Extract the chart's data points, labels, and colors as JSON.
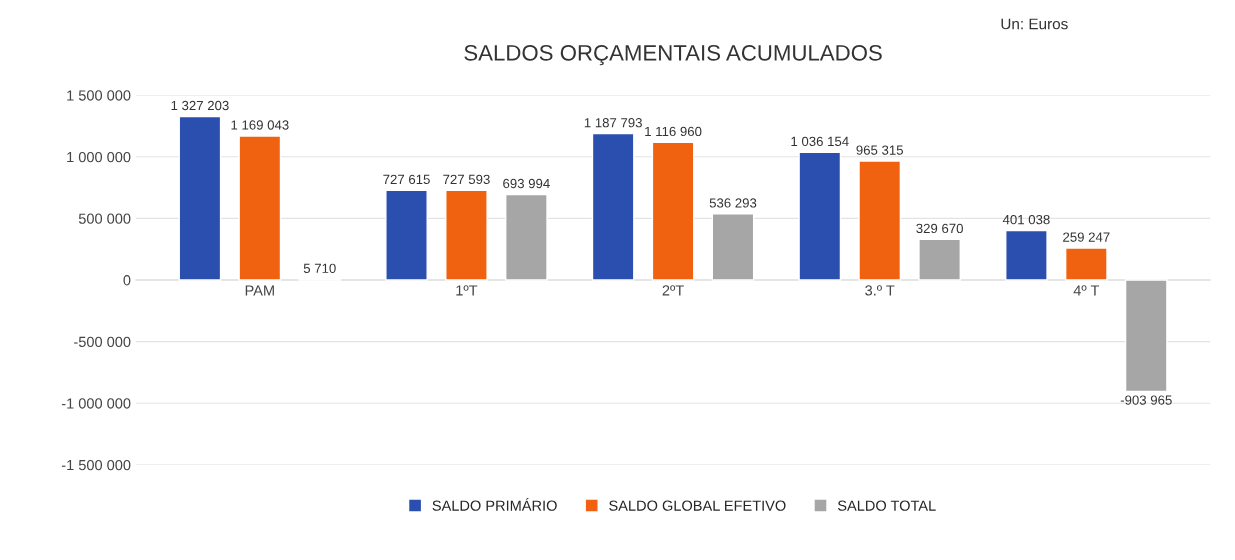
{
  "chart_data": {
    "type": "bar",
    "title": "SALDOS ORÇAMENTAIS ACUMULADOS",
    "annotations": [
      "Un: Euros"
    ],
    "categories": [
      "PAM",
      "1ºT",
      "2ºT",
      "3.º T",
      "4º T"
    ],
    "series": [
      {
        "name": "SALDO PRIMÁRIO",
        "color": "#2b4fae",
        "values": [
          1327203,
          727615,
          1187793,
          1036154,
          401038
        ],
        "value_labels": [
          "1 327 203",
          "727 615",
          "1 187 793",
          "1 036 154",
          "401 038"
        ]
      },
      {
        "name": "SALDO GLOBAL EFETIVO",
        "color": "#f0620f",
        "values": [
          1169043,
          727593,
          1116960,
          965315,
          259247
        ],
        "value_labels": [
          "1 169 043",
          "727 593",
          "1 116 960",
          "965 315",
          "259 247"
        ]
      },
      {
        "name": "SALDO TOTAL",
        "color": "#a6a6a6",
        "values": [
          5710,
          693994,
          536293,
          329670,
          -903965
        ],
        "value_labels": [
          "5 710",
          "693 994",
          "536 293",
          "329 670",
          "-903 965"
        ]
      }
    ],
    "ylim": [
      -1500000,
      1500000
    ],
    "yticks": [
      {
        "value": -1500000,
        "label": "-1 500 000"
      },
      {
        "value": -1000000,
        "label": "-1 000 000"
      },
      {
        "value": -500000,
        "label": "-500 000"
      },
      0,
      {
        "value": 500000,
        "label": "500 000"
      },
      {
        "value": 1000000,
        "label": "1 000 000"
      },
      {
        "value": 1500000,
        "label": "1 500 000"
      }
    ],
    "grid": "y",
    "legend": "bottom"
  }
}
